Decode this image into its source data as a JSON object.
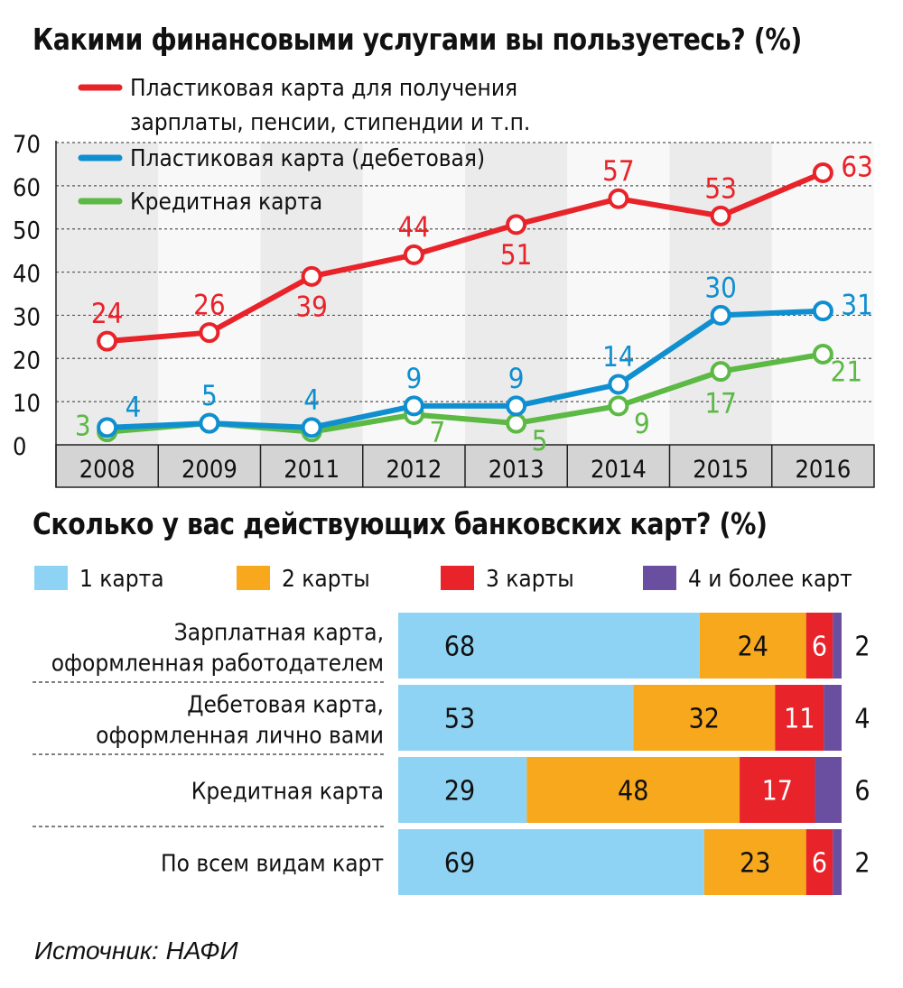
{
  "chart_data": [
    {
      "type": "line",
      "title": "Какими финансовыми услугами вы пользуетесь? (%)",
      "categories": [
        "2008",
        "2009",
        "2011",
        "2012",
        "2013",
        "2014",
        "2015",
        "2016"
      ],
      "ylim": [
        0,
        70
      ],
      "yticks": [
        "0",
        "10",
        "20",
        "30",
        "40",
        "50",
        "60",
        "70"
      ],
      "grid": true,
      "legend": "top-left",
      "series": [
        {
          "name": "Пластиковая карта для получения зарплаты, пенсии, стипендии и т.п.",
          "name_lines": [
            "Пластиковая карта для получения",
            "зарплаты, пенсии, стипендии и т.п."
          ],
          "color": "#e8232a",
          "values": [
            24,
            26,
            39,
            44,
            51,
            57,
            53,
            63
          ],
          "labels": [
            "24",
            "26",
            "39",
            "44",
            "51",
            "57",
            "53",
            "63"
          ]
        },
        {
          "name": "Пластиковая карта (дебетовая)",
          "name_lines": [
            "Пластиковая карта (дебетовая)"
          ],
          "color": "#0f8fd0",
          "values": [
            4,
            5,
            4,
            9,
            9,
            14,
            30,
            31
          ],
          "labels": [
            "4",
            "5",
            "4",
            "9",
            "9",
            "14",
            "30",
            "31"
          ]
        },
        {
          "name": "Кредитная карта",
          "name_lines": [
            "Кредитная карта"
          ],
          "color": "#5bb944",
          "values": [
            3,
            5,
            3,
            7,
            5,
            9,
            17,
            21
          ],
          "labels": [
            "3",
            "",
            "",
            "7",
            "5",
            "9",
            "17",
            "21"
          ]
        }
      ]
    },
    {
      "type": "bar",
      "stacked": true,
      "orientation": "horizontal",
      "title": "Сколько у вас действующих банковских карт? (%)",
      "legend": "top",
      "categories": [
        "Зарплатная карта, оформленная работодателем",
        "Дебетовая карта, оформленная лично вами",
        "Кредитная карта",
        "По всем видам карт"
      ],
      "category_lines": [
        [
          "Зарплатная карта,",
          "оформленная работодателем"
        ],
        [
          "Дебетовая карта,",
          "оформленная лично вами"
        ],
        [
          "Кредитная карта"
        ],
        [
          "По всем видам карт"
        ]
      ],
      "series": [
        {
          "name": "1 карта",
          "color": "#8fd3f4",
          "values": [
            68,
            53,
            29,
            69
          ]
        },
        {
          "name": "2 карты",
          "color": "#f8a81c",
          "values": [
            24,
            32,
            48,
            23
          ]
        },
        {
          "name": "3 карты",
          "color": "#e8232a",
          "values": [
            6,
            11,
            17,
            6
          ]
        },
        {
          "name": "4 и более карт",
          "color": "#6a4ea0",
          "values": [
            2,
            4,
            6,
            2
          ]
        }
      ]
    }
  ],
  "source": "Источник: НАФИ"
}
